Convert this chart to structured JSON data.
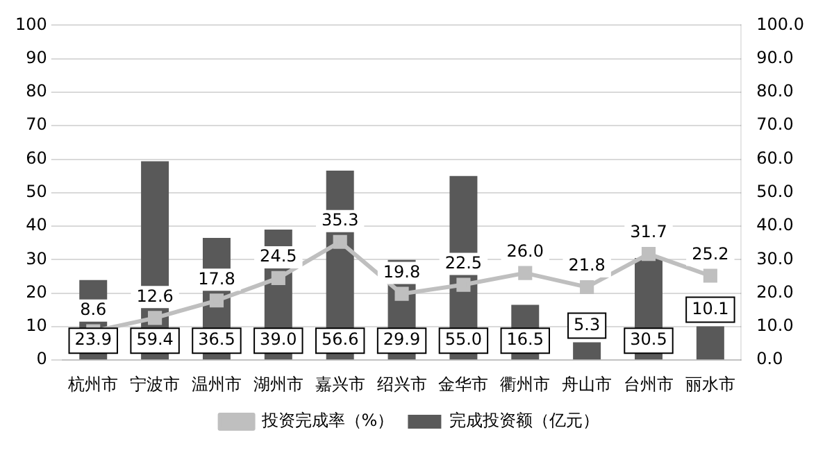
{
  "chart_data": {
    "type": "bar",
    "categories": [
      "杭州市",
      "宁波市",
      "温州市",
      "湖州市",
      "嘉兴市",
      "绍兴市",
      "金华市",
      "衢州市",
      "舟山市",
      "台州市",
      "丽水市"
    ],
    "series": [
      {
        "name": "完成投资额（亿元）",
        "color": "#595959",
        "values": [
          23.9,
          59.4,
          36.5,
          39.0,
          56.6,
          29.9,
          55.0,
          16.5,
          5.3,
          30.5,
          10.1
        ],
        "value_labels": [
          "23.9",
          "59.4",
          "36.5",
          "39.0",
          "56.6",
          "29.9",
          "55.0",
          "16.5",
          "5.3",
          "30.5",
          "10.1"
        ]
      },
      {
        "name": "投资完成率（%）",
        "type": "line",
        "axis": "y2",
        "marker": "square",
        "color": "#bfbfbf",
        "values": [
          8.6,
          12.6,
          17.8,
          24.5,
          35.3,
          19.8,
          22.5,
          26.0,
          21.8,
          31.7,
          25.2
        ],
        "value_labels": [
          "8.6",
          "12.6",
          "17.8",
          "24.5",
          "35.3",
          "19.8",
          "22.5",
          "26.0",
          "21.8",
          "31.7",
          "25.2"
        ]
      }
    ],
    "ylim": [
      0,
      100
    ],
    "yticks": [
      0,
      10,
      20,
      30,
      40,
      50,
      60,
      70,
      80,
      90,
      100
    ],
    "y2lim": [
      0,
      100
    ],
    "y2ticks": [
      {
        "value": 0,
        "label": "0.0"
      },
      {
        "value": 10,
        "label": "10.0"
      },
      {
        "value": 20,
        "label": "20.0"
      },
      {
        "value": 30,
        "label": "30.0"
      },
      {
        "value": 40,
        "label": "40.0"
      },
      {
        "value": 50,
        "label": "50.0"
      },
      {
        "value": 60,
        "label": "60.0"
      },
      {
        "value": 70,
        "label": "70.0"
      },
      {
        "value": 80,
        "label": "80.0"
      },
      {
        "value": 90,
        "label": "90.0"
      },
      {
        "value": 100,
        "label": "100.0"
      }
    ],
    "grid": "y",
    "legend": "bottom"
  }
}
